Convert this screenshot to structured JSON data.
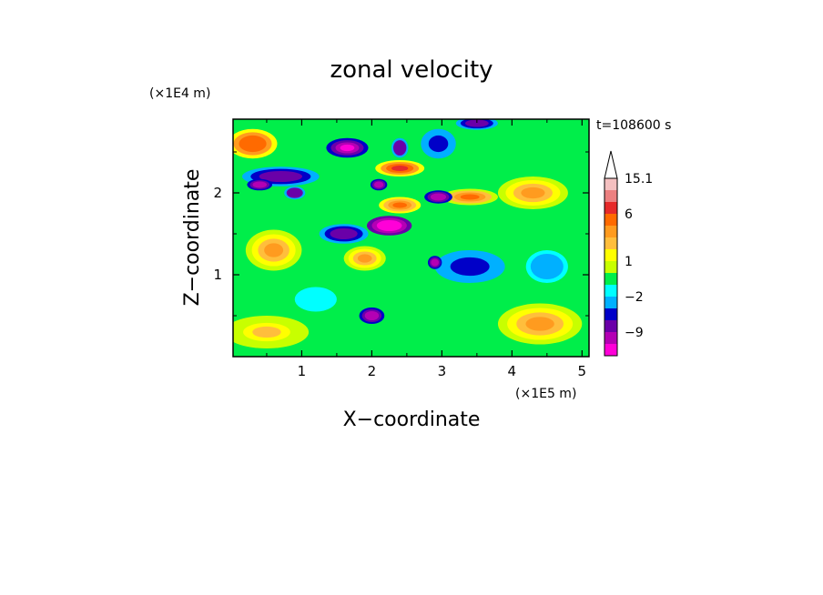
{
  "chart_data": {
    "type": "heatmap",
    "title": "zonal velocity",
    "xlabel": "X−coordinate",
    "ylabel": "Z−coordinate",
    "x_unit": "(×1E5 m)",
    "y_unit": "(×1E4 m)",
    "time_label": "t=108600 s",
    "xlim": [
      0.02,
      5.1
    ],
    "ylim": [
      0.0,
      2.9
    ],
    "xticks": [
      1,
      2,
      3,
      4,
      5
    ],
    "xtick_labels": [
      "1",
      "2",
      "3",
      "4",
      "5"
    ],
    "yticks": [
      1,
      2
    ],
    "ytick_labels": [
      "1",
      "2"
    ],
    "colorbar": {
      "tick_labels": [
        "15.1",
        "6",
        "1",
        "−2",
        "−9"
      ],
      "levels_top_to_bottom": [
        15.1,
        12,
        9,
        6,
        4,
        3,
        2,
        1,
        0,
        -1,
        -2,
        -3,
        -6,
        -9,
        -12
      ],
      "colors_top_to_bottom": [
        "#f4c0c0",
        "#ec8080",
        "#e62a2a",
        "#ff6a00",
        "#ff9b1f",
        "#ffbe3c",
        "#ffff00",
        "#c8ff00",
        "#00ee4a",
        "#00ffff",
        "#00b0ff",
        "#0000c8",
        "#6a00a8",
        "#b400b4",
        "#ff00d8"
      ],
      "extend_max": true
    },
    "regions": [
      {
        "x": 0.3,
        "z": 2.6,
        "value": 8,
        "rx": 0.35,
        "rz": 0.18
      },
      {
        "x": 0.7,
        "z": 2.2,
        "value": -4,
        "rx": 0.55,
        "rz": 0.12
      },
      {
        "x": 0.4,
        "z": 2.1,
        "value": -9,
        "rx": 0.18,
        "rz": 0.07
      },
      {
        "x": 0.9,
        "z": 2.0,
        "value": -6,
        "rx": 0.15,
        "rz": 0.08
      },
      {
        "x": 1.65,
        "z": 2.55,
        "value": -10,
        "rx": 0.3,
        "rz": 0.12
      },
      {
        "x": 2.4,
        "z": 2.55,
        "value": -6,
        "rx": 0.12,
        "rz": 0.12
      },
      {
        "x": 2.95,
        "z": 2.6,
        "value": -3,
        "rx": 0.25,
        "rz": 0.18
      },
      {
        "x": 2.25,
        "z": 1.6,
        "value": -12,
        "rx": 0.32,
        "rz": 0.12
      },
      {
        "x": 1.6,
        "z": 1.5,
        "value": -4,
        "rx": 0.35,
        "rz": 0.12
      },
      {
        "x": 2.1,
        "z": 2.1,
        "value": -8,
        "rx": 0.12,
        "rz": 0.07
      },
      {
        "x": 2.95,
        "z": 1.95,
        "value": -9,
        "rx": 0.2,
        "rz": 0.08
      },
      {
        "x": 2.4,
        "z": 2.3,
        "value": 9,
        "rx": 0.35,
        "rz": 0.1
      },
      {
        "x": 2.4,
        "z": 1.85,
        "value": 7,
        "rx": 0.3,
        "rz": 0.1
      },
      {
        "x": 3.4,
        "z": 1.95,
        "value": 6,
        "rx": 0.4,
        "rz": 0.1
      },
      {
        "x": 3.4,
        "z": 1.1,
        "value": -3,
        "rx": 0.5,
        "rz": 0.2
      },
      {
        "x": 2.9,
        "z": 1.15,
        "value": -8,
        "rx": 0.1,
        "rz": 0.08
      },
      {
        "x": 2.0,
        "z": 0.5,
        "value": -8,
        "rx": 0.18,
        "rz": 0.1
      },
      {
        "x": 3.5,
        "z": 2.85,
        "value": -4,
        "rx": 0.3,
        "rz": 0.08
      },
      {
        "x": 0.6,
        "z": 1.3,
        "value": 4,
        "rx": 0.4,
        "rz": 0.25
      },
      {
        "x": 1.9,
        "z": 1.2,
        "value": 5,
        "rx": 0.3,
        "rz": 0.15
      },
      {
        "x": 4.3,
        "z": 2.0,
        "value": 5,
        "rx": 0.5,
        "rz": 0.2
      },
      {
        "x": 4.4,
        "z": 0.4,
        "value": 4,
        "rx": 0.6,
        "rz": 0.25
      },
      {
        "x": 0.5,
        "z": 0.3,
        "value": 3,
        "rx": 0.6,
        "rz": 0.2
      },
      {
        "x": 4.5,
        "z": 1.1,
        "value": -2,
        "rx": 0.3,
        "rz": 0.2
      },
      {
        "x": 1.2,
        "z": 0.7,
        "value": -1,
        "rx": 0.3,
        "rz": 0.15
      }
    ]
  }
}
